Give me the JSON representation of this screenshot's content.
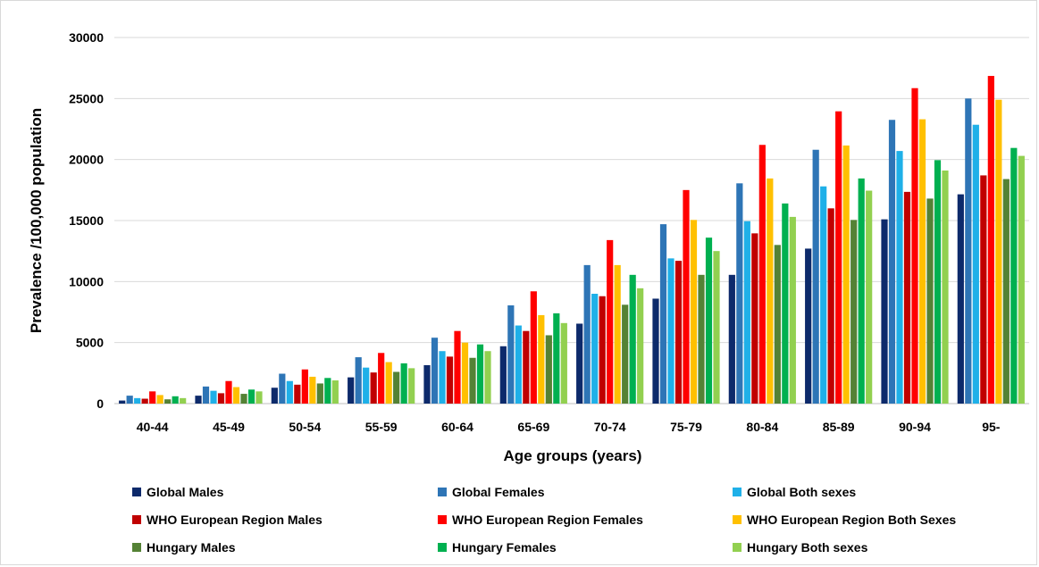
{
  "chart_data": {
    "type": "bar",
    "title": "",
    "xlabel": "Age groups (years)",
    "ylabel": "Prevalence /100,000 population",
    "ylim": [
      0,
      30000
    ],
    "yticks": [
      0,
      5000,
      10000,
      15000,
      20000,
      25000,
      30000
    ],
    "grid": true,
    "legend_position": "bottom",
    "categories": [
      "40-44",
      "45-49",
      "50-54",
      "55-59",
      "60-64",
      "65-69",
      "70-74",
      "75-79",
      "80-84",
      "85-89",
      "90-94",
      "95-"
    ],
    "series": [
      {
        "name": "Global Males",
        "color": "#0d2a6b",
        "values": [
          250,
          650,
          1300,
          2150,
          3150,
          4700,
          6550,
          8600,
          10550,
          12700,
          15100,
          17150
        ]
      },
      {
        "name": "Global Females",
        "color": "#2e75b6",
        "values": [
          650,
          1400,
          2450,
          3800,
          5400,
          8050,
          11350,
          14700,
          18050,
          20800,
          23250,
          25000
        ]
      },
      {
        "name": "Global Both sexes",
        "color": "#1fb0e8",
        "values": [
          450,
          1050,
          1850,
          2950,
          4300,
          6400,
          9000,
          11900,
          14950,
          17800,
          20700,
          22850
        ]
      },
      {
        "name": "WHO European Region Males",
        "color": "#c00000",
        "values": [
          400,
          850,
          1550,
          2550,
          3850,
          5950,
          8800,
          11700,
          13950,
          16000,
          17350,
          18700
        ]
      },
      {
        "name": "WHO European Region Females",
        "color": "#ff0000",
        "values": [
          1000,
          1850,
          2800,
          4150,
          5950,
          9200,
          13400,
          17500,
          21200,
          23950,
          25850,
          26850
        ]
      },
      {
        "name": "WHO European Region Both Sexes",
        "color": "#ffc000",
        "values": [
          700,
          1350,
          2200,
          3400,
          5000,
          7250,
          11350,
          15050,
          18450,
          21150,
          23300,
          24900
        ]
      },
      {
        "name": "Hungary Males",
        "color": "#548235",
        "values": [
          350,
          800,
          1650,
          2600,
          3750,
          5600,
          8100,
          10550,
          13000,
          15050,
          16800,
          18400
        ]
      },
      {
        "name": "Hungary Females",
        "color": "#00b050",
        "values": [
          600,
          1150,
          2100,
          3300,
          4850,
          7400,
          10550,
          13600,
          16400,
          18450,
          19950,
          20950
        ]
      },
      {
        "name": "Hungary Both sexes",
        "color": "#92d050",
        "values": [
          450,
          1000,
          1900,
          2900,
          4300,
          6600,
          9450,
          12500,
          15300,
          17450,
          19100,
          20300
        ]
      }
    ]
  }
}
